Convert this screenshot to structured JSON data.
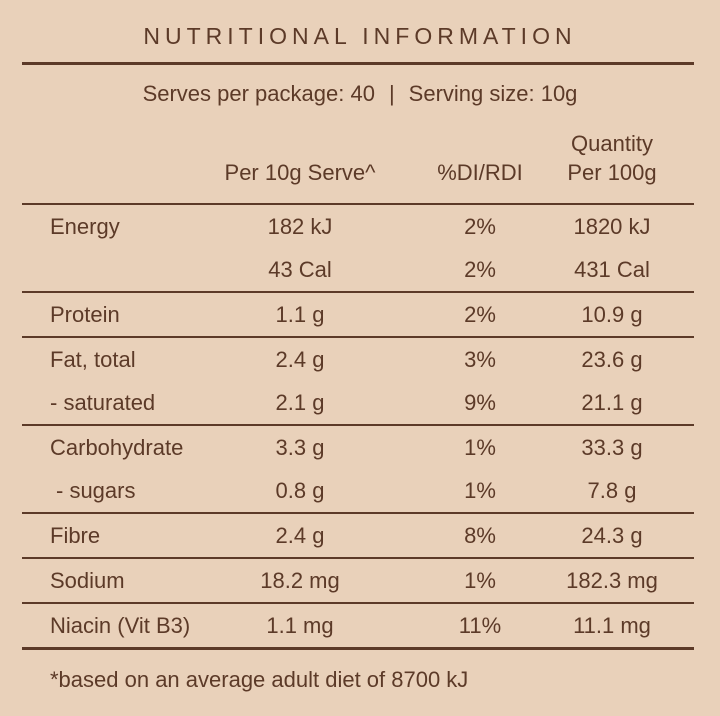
{
  "page": {
    "colors": {
      "background": "#e9d1ba",
      "text": "#5c3a28",
      "rule": "#5c3a28"
    }
  },
  "header": {
    "title": "NUTRITIONAL INFORMATION",
    "serves_per_package": "Serves per package: 40",
    "separator": "|",
    "serving_size": "Serving size: 10g"
  },
  "table": {
    "column_headers": {
      "serve": "Per 10g Serve^",
      "di_rdi": "%DI/RDI",
      "quantity_line1": "Quantity",
      "quantity_line2": "Per 100g"
    },
    "rows": [
      {
        "label": "Energy",
        "serve": "182 kJ",
        "di": "2%",
        "per100": "1820 kJ"
      },
      {
        "label": "",
        "serve": "43 Cal",
        "di": "2%",
        "per100": "431 Cal"
      },
      {
        "label": "Protein",
        "serve": "1.1 g",
        "di": "2%",
        "per100": "10.9 g"
      },
      {
        "label": "Fat, total",
        "serve": "2.4 g",
        "di": "3%",
        "per100": "23.6 g"
      },
      {
        "label": "- saturated",
        "serve": "2.1 g",
        "di": "9%",
        "per100": "21.1 g"
      },
      {
        "label": "Carbohydrate",
        "serve": "3.3 g",
        "di": "1%",
        "per100": "33.3 g"
      },
      {
        "label": "- sugars",
        "serve": "0.8 g",
        "di": "1%",
        "per100": "7.8 g"
      },
      {
        "label": "Fibre",
        "serve": "2.4 g",
        "di": "8%",
        "per100": "24.3 g"
      },
      {
        "label": "Sodium",
        "serve": "18.2 mg",
        "di": "1%",
        "per100": "182.3 mg"
      },
      {
        "label": "Niacin (Vit B3)",
        "serve": "1.1 mg",
        "di": "11%",
        "per100": "11.1 mg"
      }
    ]
  },
  "footnote": "*based on an average adult diet of 8700 kJ"
}
